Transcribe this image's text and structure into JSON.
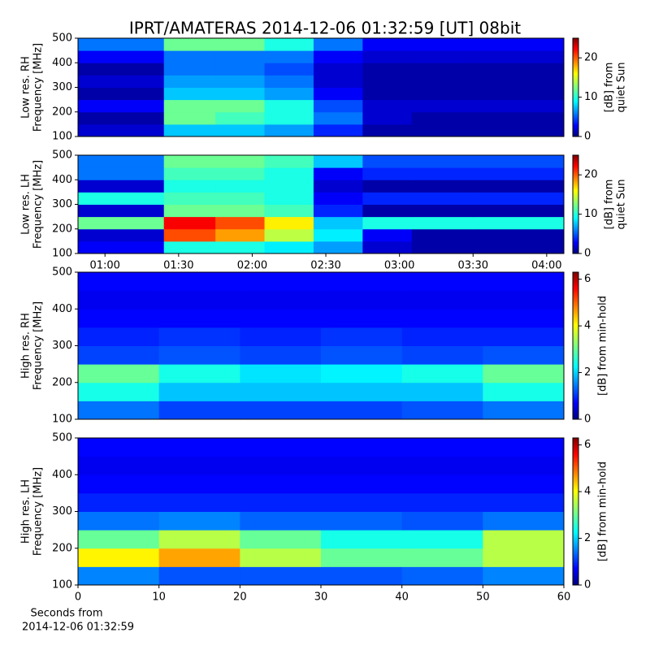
{
  "chart_data": [
    {
      "type": "heatmap",
      "title": "IPRT/AMATERAS 2014-12-06 01:32:59 [UT]   08bit",
      "ylabel": [
        "Low res. RH",
        "Frequency [MHz]"
      ],
      "colorbar_label": [
        "[dB] from",
        "quiet Sun"
      ],
      "xlim": [
        "00:49",
        "04:07"
      ],
      "ylim": [
        100,
        500
      ],
      "yticks": [
        100,
        200,
        300,
        400,
        500
      ],
      "clim": [
        0,
        25
      ],
      "cticks": [
        0,
        10,
        20
      ],
      "colormap": "jet",
      "x": [
        "00:49",
        "01:24",
        "01:45",
        "02:05",
        "02:25",
        "02:45",
        "03:05",
        "03:30",
        "04:07"
      ],
      "y": [
        100,
        150,
        200,
        250,
        300,
        350,
        400,
        450,
        500
      ],
      "values": [
        [
          2,
          8,
          8,
          7,
          4,
          1,
          1,
          1
        ],
        [
          1,
          12,
          11,
          10,
          6,
          2,
          1,
          1
        ],
        [
          3,
          12,
          12,
          10,
          5,
          2,
          2,
          2
        ],
        [
          1,
          8,
          8,
          7,
          3,
          1,
          1,
          1
        ],
        [
          2,
          7,
          7,
          6,
          2,
          1,
          1,
          1
        ],
        [
          1,
          6,
          6,
          5,
          2,
          1,
          1,
          1
        ],
        [
          3,
          6,
          6,
          6,
          3,
          2,
          2,
          2
        ],
        [
          6,
          12,
          12,
          10,
          6,
          3,
          3,
          3
        ]
      ]
    },
    {
      "type": "heatmap",
      "ylabel": [
        "Low res. LH",
        "Frequency [MHz]"
      ],
      "colorbar_label": [
        "[dB] from",
        "quiet Sun"
      ],
      "xlim": [
        "00:49",
        "04:07"
      ],
      "xticks": [
        "01:00",
        "01:30",
        "02:00",
        "02:30",
        "03:00",
        "03:30",
        "04:00"
      ],
      "ylim": [
        100,
        500
      ],
      "yticks": [
        100,
        200,
        300,
        400,
        500
      ],
      "clim": [
        0,
        25
      ],
      "cticks": [
        0,
        10,
        20
      ],
      "colormap": "jet",
      "x": [
        "00:49",
        "01:24",
        "01:45",
        "02:05",
        "02:25",
        "02:45",
        "03:05",
        "03:30",
        "04:07"
      ],
      "y": [
        100,
        150,
        200,
        250,
        300,
        350,
        400,
        450,
        500
      ],
      "values": [
        [
          3,
          10,
          10,
          9,
          7,
          2,
          1,
          1
        ],
        [
          2,
          20,
          18,
          14,
          9,
          3,
          1,
          1
        ],
        [
          12,
          22,
          20,
          16,
          8,
          10,
          10,
          10
        ],
        [
          2,
          12,
          12,
          11,
          4,
          1,
          1,
          1
        ],
        [
          10,
          11,
          11,
          10,
          3,
          4,
          4,
          4
        ],
        [
          2,
          10,
          10,
          10,
          2,
          1,
          1,
          1
        ],
        [
          6,
          11,
          11,
          10,
          3,
          4,
          4,
          4
        ],
        [
          6,
          12,
          12,
          11,
          8,
          5,
          5,
          5
        ]
      ]
    },
    {
      "type": "heatmap",
      "ylabel": [
        "High res. RH",
        "Frequency [MHz]"
      ],
      "colorbar_label": [
        "[dB] from min-hold"
      ],
      "xlim": [
        0,
        60
      ],
      "ylim": [
        100,
        500
      ],
      "yticks": [
        100,
        200,
        300,
        400,
        500
      ],
      "clim": [
        0,
        6.3
      ],
      "cticks": [
        0,
        2,
        4,
        6
      ],
      "colormap": "jet",
      "x": [
        0,
        10,
        20,
        30,
        40,
        50,
        60
      ],
      "y": [
        100,
        150,
        200,
        250,
        300,
        350,
        400,
        450,
        500
      ],
      "values": [
        [
          1.5,
          1.2,
          1.2,
          1.2,
          1.3,
          1.5
        ],
        [
          2.5,
          2,
          2,
          2,
          2,
          2.5
        ],
        [
          3,
          2.5,
          2.2,
          2.3,
          2.5,
          3
        ],
        [
          1.2,
          1.3,
          1.2,
          1.3,
          1.2,
          1.3
        ],
        [
          1,
          1.1,
          1,
          1.1,
          1,
          1
        ],
        [
          0.8,
          0.8,
          0.8,
          0.8,
          0.8,
          0.8
        ],
        [
          0.7,
          0.7,
          0.7,
          0.7,
          0.7,
          0.7
        ],
        [
          0.8,
          0.8,
          0.8,
          0.8,
          0.8,
          0.8
        ]
      ]
    },
    {
      "type": "heatmap",
      "ylabel": [
        "High res. LH",
        "Frequency [MHz]"
      ],
      "colorbar_label": [
        "[dB] from min-hold"
      ],
      "xlim": [
        0,
        60
      ],
      "xticks": [
        0,
        10,
        20,
        30,
        40,
        50,
        60
      ],
      "xlabel": [
        "Seconds from",
        "2014-12-06 01:32:59"
      ],
      "ylim": [
        100,
        500
      ],
      "yticks": [
        100,
        200,
        300,
        400,
        500
      ],
      "clim": [
        0,
        6.3
      ],
      "cticks": [
        0,
        2,
        4,
        6
      ],
      "colormap": "jet",
      "x": [
        0,
        10,
        20,
        30,
        40,
        50,
        60
      ],
      "y": [
        100,
        150,
        200,
        250,
        300,
        350,
        400,
        450,
        500
      ],
      "values": [
        [
          1.6,
          1.3,
          1.3,
          1.3,
          1.4,
          1.6
        ],
        [
          4,
          4.5,
          3.5,
          3,
          3,
          3.5
        ],
        [
          3,
          3.5,
          3,
          2.5,
          2.5,
          3.5
        ],
        [
          1.5,
          1.6,
          1.4,
          1.4,
          1.3,
          1.5
        ],
        [
          1,
          1,
          1,
          1,
          1,
          1
        ],
        [
          0.8,
          0.8,
          0.8,
          0.8,
          0.8,
          0.8
        ],
        [
          0.7,
          0.7,
          0.7,
          0.7,
          0.7,
          0.7
        ],
        [
          0.8,
          0.8,
          0.8,
          0.8,
          0.8,
          0.8
        ]
      ]
    }
  ]
}
